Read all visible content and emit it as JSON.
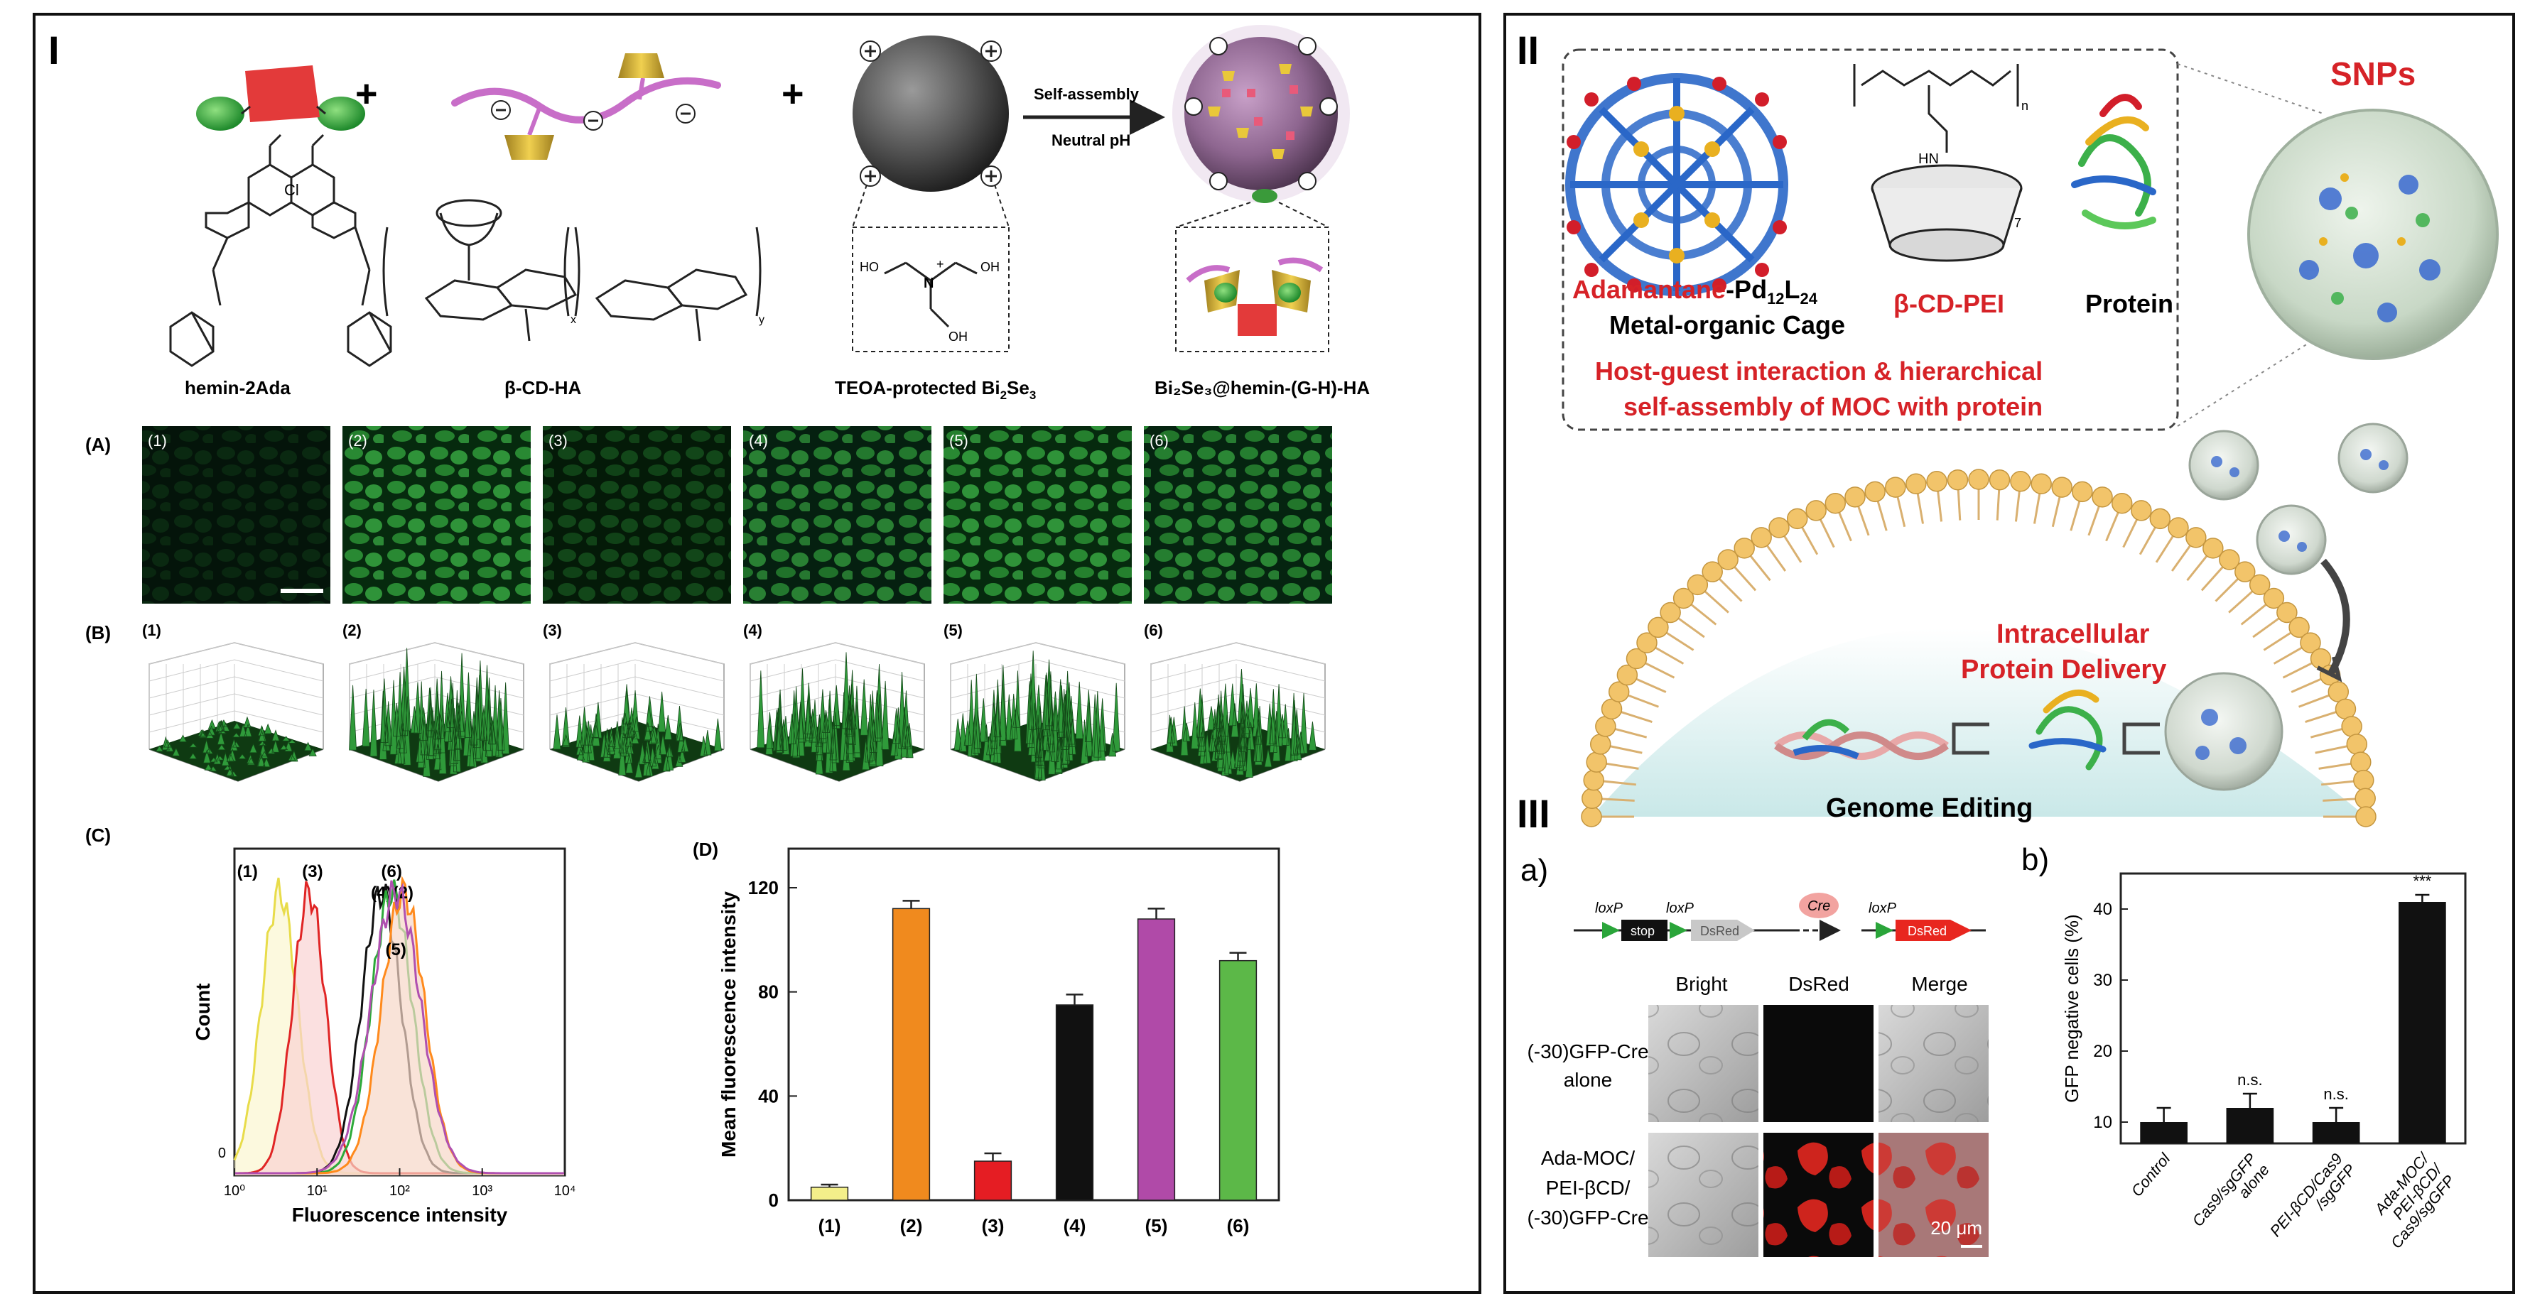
{
  "panels": {
    "I": {
      "label": "I"
    },
    "II": {
      "label": "II"
    },
    "III": {
      "label": "III"
    }
  },
  "panel1": {
    "plus": "+",
    "self_assembly": "Self-assembly",
    "neutral_ph": "Neutral pH",
    "labels": {
      "hemin": "hemin-2Ada",
      "cdha": "β-CD-HA",
      "teoa": "TEOA-protected Bi",
      "teoa_sub": "2",
      "teoa_mid": "Se",
      "teoa_sub2": "3",
      "product": "Bi₂Se₃@hemin-(G-H)-HA"
    },
    "rowA": "(A)",
    "rowB": "(B)",
    "rowC": "(C)",
    "rowD": "(D)",
    "samples": [
      "(1)",
      "(2)",
      "(3)",
      "(4)",
      "(5)",
      "(6)"
    ]
  },
  "flow_chart": {
    "type": "line",
    "xlabel": "Fluorescence intensity",
    "ylabel": "Count",
    "x_ticks": [
      "10⁰",
      "10¹",
      "10²",
      "10³",
      "10⁴"
    ],
    "y_zero": "0",
    "xscale": "log",
    "xlim": [
      1,
      10000
    ],
    "series": [
      {
        "name": "(1)",
        "color": "#e8dc4a",
        "peak": 3.5,
        "width": 0.22,
        "fill": "#fbf7d0"
      },
      {
        "name": "(3)",
        "color": "#e02525",
        "peak": 8,
        "width": 0.2,
        "fill": "#f9d3d3"
      },
      {
        "name": "(4)",
        "color": "#111111",
        "peak": 60,
        "width": 0.24,
        "fill": "none"
      },
      {
        "name": "(6)",
        "color": "#2eaa3a",
        "peak": 80,
        "width": 0.25,
        "fill": "none"
      },
      {
        "name": "(2)",
        "color": "#ff8a1c",
        "peak": 110,
        "width": 0.26,
        "fill": "#f6d7c7"
      },
      {
        "name": "(5)",
        "color": "#b050b0",
        "peak": 90,
        "width": 0.3,
        "fill": "none"
      }
    ]
  },
  "bar_chart": {
    "type": "bar",
    "ylabel": "Mean fluorescence intensity",
    "categories": [
      "(1)",
      "(2)",
      "(3)",
      "(4)",
      "(5)",
      "(6)"
    ],
    "values": [
      5,
      112,
      15,
      75,
      108,
      92
    ],
    "errors": [
      1,
      3,
      3,
      4,
      4,
      3
    ],
    "colors": [
      "#f3ef8a",
      "#f08a1e",
      "#e51d23",
      "#111111",
      "#b04aa8",
      "#5cb848"
    ],
    "yticks": [
      0,
      40,
      80,
      120
    ],
    "ylim": [
      0,
      135
    ]
  },
  "panel2": {
    "pei_label": "β-CD-PEI",
    "protein_label": "Protein",
    "moc_name_red": "Adamantane",
    "moc_name_black": "-Pd",
    "moc_sub1": "12",
    "moc_l": "L",
    "moc_sub2": "24",
    "moc_line2": "Metal-organic Cage",
    "hg_line1": "Host-guest interaction & hierarchical",
    "hg_line2": "self-assembly of MOC with protein",
    "snps": "SNPs",
    "intracellular1": "Intracellular",
    "intracellular2": "Protein Delivery",
    "genome": "Genome Editing",
    "pei_n": "n",
    "pei_hn": "HN",
    "pei_seven": "7"
  },
  "panel3": {
    "a_label": "a)",
    "b_label": "b)",
    "loxp1": "loxP",
    "stop": "stop",
    "loxp2": "loxP",
    "dsred1": "DsRed",
    "cre": "Cre",
    "loxp3": "loxP",
    "dsred2": "DsRed",
    "col_bright": "Bright",
    "col_dsred": "DsRed",
    "col_merge": "Merge",
    "row1_line1": "(-30)GFP-Cre",
    "row1_line2": "alone",
    "row2_line1": "Ada-MOC/",
    "row2_line2": "PEI-βCD/",
    "row2_line3": "(-30)GFP-Cre",
    "scale": "20 μm"
  },
  "gfp_chart": {
    "type": "bar",
    "ylabel": "GFP negative cells (%)",
    "categories": [
      "Control",
      "Cas9/sgGFP alone",
      "PEI-βCD/Cas9/sgGFP",
      "Ada-MOC/PEI-βCD/Cas9/sgGFP"
    ],
    "category_lines": [
      [
        "Control"
      ],
      [
        "Cas9/sgGFP",
        "alone"
      ],
      [
        "PEI-βCD/Cas9",
        "/sgGFP"
      ],
      [
        "Ada-MOC/",
        "PEI-βCD/",
        "Cas9/sgGFP"
      ]
    ],
    "values": [
      10,
      12,
      10,
      41
    ],
    "errors": [
      2,
      2,
      2,
      1
    ],
    "annotations": [
      "",
      "n.s.",
      "n.s.",
      "***"
    ],
    "yticks": [
      10,
      20,
      30,
      40
    ],
    "ylim": [
      7,
      45
    ]
  }
}
